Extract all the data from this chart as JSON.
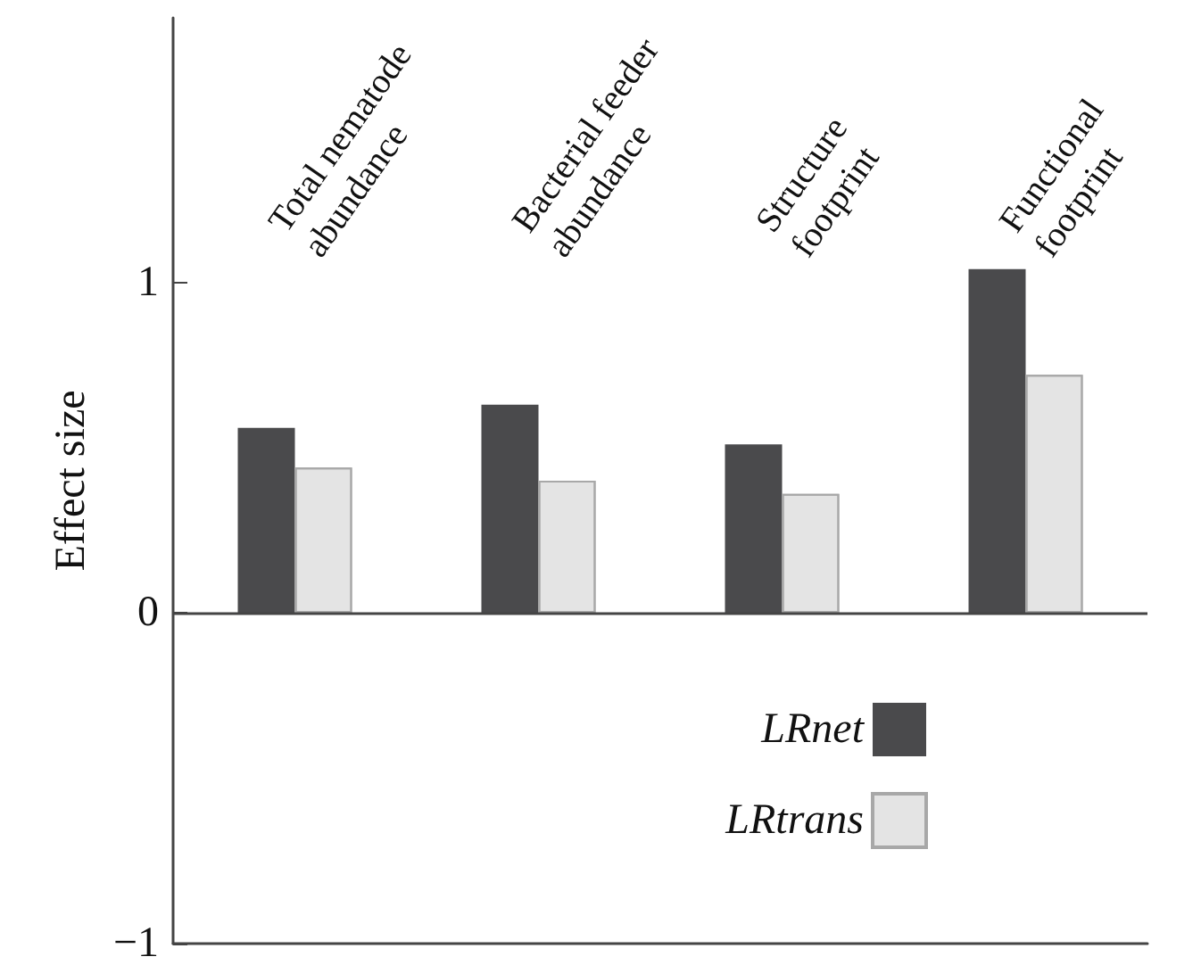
{
  "chart_data": {
    "type": "bar",
    "ylabel": "Effect size",
    "categories": [
      "Total nematode abundance",
      "Bacterial feeder abundance",
      "Structure footprint",
      "Functional footprint"
    ],
    "series": [
      {
        "name": "LRnet",
        "color": "#4a4a4c",
        "values": [
          0.56,
          0.63,
          0.51,
          1.04
        ]
      },
      {
        "name": "LRtrans",
        "color": "#e4e4e4",
        "values": [
          0.44,
          0.4,
          0.36,
          0.72
        ]
      }
    ],
    "ref_lines": [
      {
        "axis": "y",
        "value": 0,
        "color": "#444444"
      }
    ],
    "ylim": [
      -1,
      1.8
    ],
    "yticks": [
      -1,
      0,
      1
    ],
    "grid": false,
    "legend": "bottom right"
  }
}
